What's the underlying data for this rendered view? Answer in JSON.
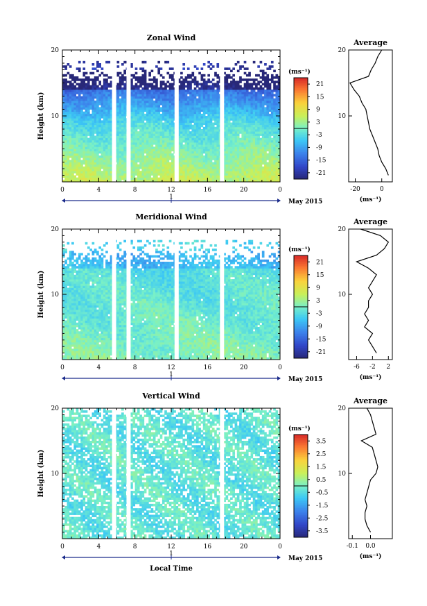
{
  "chart_data": [
    {
      "type": "heatmap",
      "title": "Zonal Wind",
      "ylabel": "Height (km)",
      "xlabel": "",
      "x_ticks": [
        "0",
        "4",
        "8",
        "12",
        "16",
        "20",
        "0"
      ],
      "y_ticks": [
        "20",
        "10"
      ],
      "xlim": [
        0,
        24
      ],
      "ylim": [
        0,
        20
      ],
      "date_marker": "1",
      "date_label": "May 2015",
      "colorbar": {
        "unit": "(ms⁻¹)",
        "ticks": [
          "21",
          "15",
          "9",
          "3",
          "-3",
          "-9",
          "-15",
          "-21"
        ],
        "range": [
          -24,
          24
        ]
      },
      "gaps_hours": [
        5.7,
        7.3,
        12.6,
        17.6
      ],
      "average_profile": {
        "title": "Average",
        "x_ticks": [
          "-20",
          "0"
        ],
        "xlim": [
          -25,
          8
        ],
        "unit": "(ms⁻¹)",
        "y_ticks": [
          "20",
          "10"
        ],
        "points": [
          [
            5,
            1
          ],
          [
            3,
            2
          ],
          [
            0,
            3
          ],
          [
            -2,
            4
          ],
          [
            -3,
            5
          ],
          [
            -5,
            6
          ],
          [
            -7,
            7
          ],
          [
            -9,
            8
          ],
          [
            -10,
            9
          ],
          [
            -11,
            10
          ],
          [
            -12,
            11
          ],
          [
            -15,
            12
          ],
          [
            -17,
            13
          ],
          [
            -21,
            14
          ],
          [
            -24,
            15
          ],
          [
            -10,
            16
          ],
          [
            -8,
            17
          ],
          [
            -5,
            18
          ],
          [
            -3,
            19
          ],
          [
            0,
            20
          ]
        ]
      }
    },
    {
      "type": "heatmap",
      "title": "Meridional Wind",
      "ylabel": "Height (km)",
      "xlabel": "",
      "x_ticks": [
        "0",
        "4",
        "8",
        "12",
        "16",
        "20",
        "0"
      ],
      "y_ticks": [
        "20",
        "10"
      ],
      "xlim": [
        0,
        24
      ],
      "ylim": [
        0,
        20
      ],
      "date_marker": "1",
      "date_label": "May 2015",
      "colorbar": {
        "unit": "(ms⁻¹)",
        "ticks": [
          "21",
          "15",
          "9",
          "3",
          "-3",
          "-9",
          "-15",
          "-21"
        ],
        "range": [
          -24,
          24
        ]
      },
      "gaps_hours": [
        5.7,
        7.3,
        12.6,
        17.6
      ],
      "average_profile": {
        "title": "Average",
        "x_ticks": [
          "-6",
          "-2",
          "2"
        ],
        "xlim": [
          -8,
          3
        ],
        "unit": "(ms⁻¹)",
        "y_ticks": [
          "20",
          "10"
        ],
        "points": [
          [
            -1,
            1
          ],
          [
            -2,
            2
          ],
          [
            -3,
            3
          ],
          [
            -2,
            4
          ],
          [
            -4,
            5
          ],
          [
            -3,
            6
          ],
          [
            -4,
            7
          ],
          [
            -3,
            8
          ],
          [
            -3,
            9
          ],
          [
            -2,
            10
          ],
          [
            -3,
            11
          ],
          [
            -2,
            12
          ],
          [
            -1,
            13
          ],
          [
            -3,
            14
          ],
          [
            -6,
            15
          ],
          [
            -1,
            16
          ],
          [
            1,
            17
          ],
          [
            2,
            18
          ],
          [
            0,
            19
          ],
          [
            -5,
            20
          ]
        ]
      }
    },
    {
      "type": "heatmap",
      "title": "Vertical Wind",
      "ylabel": "Height (km)",
      "xlabel": "Local Time",
      "x_ticks": [
        "0",
        "4",
        "8",
        "12",
        "16",
        "20",
        "0"
      ],
      "y_ticks": [
        "20",
        "10"
      ],
      "xlim": [
        0,
        24
      ],
      "ylim": [
        0,
        20
      ],
      "date_marker": "1",
      "date_label": "May 2015",
      "colorbar": {
        "unit": "(ms⁻¹)",
        "ticks": [
          "3.5",
          "2.5",
          "1.5",
          "0.5",
          "-0.5",
          "-1.5",
          "-2.5",
          "-3.5"
        ],
        "range": [
          -4,
          4
        ]
      },
      "gaps_hours": [
        5.7,
        7.3,
        17.6
      ],
      "average_profile": {
        "title": "Average",
        "x_ticks": [
          "-0.1",
          "0.0"
        ],
        "xlim": [
          -0.12,
          0.12
        ],
        "unit": "(ms⁻¹)",
        "y_ticks": [
          "20",
          "10"
        ],
        "points": [
          [
            0.0,
            1
          ],
          [
            -0.02,
            2
          ],
          [
            -0.03,
            3
          ],
          [
            -0.03,
            4
          ],
          [
            -0.02,
            5
          ],
          [
            -0.03,
            6
          ],
          [
            -0.02,
            7
          ],
          [
            -0.01,
            8
          ],
          [
            0.0,
            9
          ],
          [
            0.03,
            10
          ],
          [
            0.04,
            11
          ],
          [
            0.03,
            12
          ],
          [
            0.02,
            13
          ],
          [
            0.01,
            14
          ],
          [
            -0.05,
            15
          ],
          [
            0.03,
            16
          ],
          [
            0.02,
            17
          ],
          [
            0.01,
            18
          ],
          [
            0.0,
            19
          ],
          [
            -0.02,
            20
          ]
        ]
      }
    }
  ]
}
